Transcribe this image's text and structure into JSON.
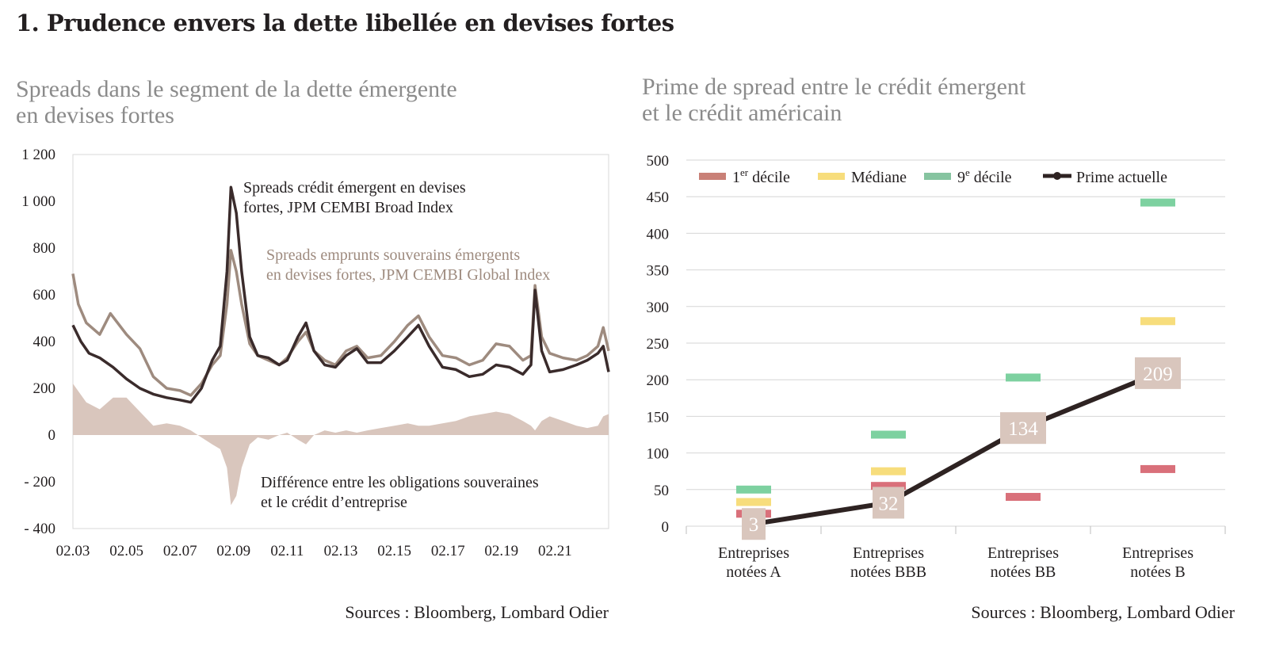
{
  "page": {
    "title": "1. Prudence envers la dette libellée en devises fortes"
  },
  "chart_data": [
    {
      "type": "line",
      "title": "Spreads dans le segment de la dette émergente en devises fortes",
      "title_lines": [
        "Spreads dans le segment de la dette émergente",
        "en devises fortes"
      ],
      "source": "Sources : Bloomberg, Lombard Odier",
      "ylim": [
        -400,
        1200
      ],
      "y_ticks": [
        1200,
        1000,
        800,
        600,
        400,
        200,
        0,
        -200,
        -400
      ],
      "y_tick_labels": [
        "1 200",
        "1 000",
        "800",
        "600",
        "400",
        "200",
        "0",
        "- 200",
        "- 400"
      ],
      "x_tick_labels": [
        "02.03",
        "02.05",
        "02.07",
        "02.09",
        "02.11",
        "02.13",
        "02.15",
        "02.17",
        "02.19",
        "02.21"
      ],
      "x_range": [
        2003.0,
        2023.0
      ],
      "x_tick_values": [
        2003.0,
        2005.0,
        2007.0,
        2009.0,
        2011.0,
        2013.0,
        2015.0,
        2017.0,
        2019.0,
        2021.0
      ],
      "grid": false,
      "series": [
        {
          "name": "Spreads crédit émergent en devises fortes, JPM CEMBI Broad Index",
          "label_lines": [
            "Spreads crédit émergent en devises",
            "fortes, JPM CEMBI Broad Index"
          ],
          "color": "#3a2b2b",
          "style": "line",
          "x": [
            2003.0,
            2003.3,
            2003.6,
            2004.0,
            2004.5,
            2005.0,
            2005.5,
            2006.0,
            2006.5,
            2007.0,
            2007.4,
            2007.8,
            2008.2,
            2008.5,
            2008.75,
            2008.9,
            2009.1,
            2009.3,
            2009.6,
            2009.9,
            2010.3,
            2010.7,
            2011.0,
            2011.4,
            2011.7,
            2012.0,
            2012.4,
            2012.8,
            2013.2,
            2013.6,
            2014.0,
            2014.5,
            2015.0,
            2015.5,
            2015.9,
            2016.3,
            2016.8,
            2017.3,
            2017.8,
            2018.3,
            2018.8,
            2019.3,
            2019.8,
            2020.1,
            2020.25,
            2020.5,
            2020.8,
            2021.3,
            2021.8,
            2022.2,
            2022.6,
            2022.8,
            2023.0
          ],
          "values": [
            470,
            400,
            350,
            330,
            290,
            240,
            200,
            175,
            160,
            150,
            140,
            200,
            320,
            380,
            700,
            1060,
            950,
            700,
            420,
            340,
            330,
            300,
            320,
            420,
            480,
            360,
            300,
            290,
            340,
            370,
            310,
            310,
            360,
            420,
            470,
            380,
            290,
            280,
            250,
            260,
            300,
            290,
            260,
            300,
            620,
            360,
            270,
            280,
            300,
            320,
            350,
            380,
            270
          ]
        },
        {
          "name": "Spreads emprunts souverains émergents en devises fortes, JPM CEMBI Global Index",
          "label_lines": [
            "Spreads emprunts souverains émergents",
            "en devises fortes, JPM CEMBI Global Index"
          ],
          "color": "#9e8b7f",
          "style": "line",
          "x": [
            2003.0,
            2003.2,
            2003.5,
            2004.0,
            2004.4,
            2005.0,
            2005.5,
            2006.0,
            2006.5,
            2007.0,
            2007.4,
            2007.8,
            2008.2,
            2008.5,
            2008.75,
            2008.9,
            2009.1,
            2009.3,
            2009.6,
            2009.9,
            2010.3,
            2010.7,
            2011.0,
            2011.4,
            2011.7,
            2012.0,
            2012.4,
            2012.8,
            2013.2,
            2013.6,
            2014.0,
            2014.5,
            2015.0,
            2015.5,
            2015.9,
            2016.3,
            2016.8,
            2017.3,
            2017.8,
            2018.3,
            2018.8,
            2019.3,
            2019.8,
            2020.1,
            2020.25,
            2020.5,
            2020.8,
            2021.3,
            2021.8,
            2022.2,
            2022.6,
            2022.8,
            2023.0
          ],
          "values": [
            690,
            560,
            480,
            430,
            520,
            430,
            370,
            250,
            200,
            190,
            170,
            220,
            300,
            340,
            560,
            790,
            700,
            560,
            390,
            340,
            320,
            300,
            330,
            400,
            440,
            360,
            320,
            300,
            360,
            380,
            330,
            340,
            400,
            470,
            510,
            420,
            340,
            330,
            300,
            320,
            390,
            380,
            320,
            340,
            640,
            420,
            350,
            330,
            320,
            340,
            380,
            460,
            360
          ]
        },
        {
          "name": "Différence entre les obligations souveraines et le crédit d’entreprise",
          "label_lines": [
            "Différence entre les obligations souveraines",
            "et le crédit d’entreprise"
          ],
          "color": "#d9c6bd",
          "style": "area",
          "x": [
            2003.0,
            2003.5,
            2004.0,
            2004.5,
            2005.0,
            2005.5,
            2006.0,
            2006.5,
            2007.0,
            2007.4,
            2007.8,
            2008.2,
            2008.5,
            2008.75,
            2008.9,
            2009.1,
            2009.3,
            2009.6,
            2009.9,
            2010.3,
            2010.7,
            2011.0,
            2011.4,
            2011.7,
            2012.0,
            2012.4,
            2012.8,
            2013.2,
            2013.6,
            2014.0,
            2014.5,
            2015.0,
            2015.5,
            2015.9,
            2016.3,
            2016.8,
            2017.3,
            2017.8,
            2018.3,
            2018.8,
            2019.3,
            2019.8,
            2020.1,
            2020.25,
            2020.5,
            2020.8,
            2021.3,
            2021.8,
            2022.2,
            2022.6,
            2022.8,
            2023.0
          ],
          "values": [
            220,
            140,
            110,
            160,
            160,
            100,
            40,
            50,
            40,
            20,
            -10,
            -40,
            -60,
            -140,
            -300,
            -260,
            -140,
            -40,
            -10,
            -20,
            0,
            10,
            -20,
            -40,
            0,
            20,
            10,
            20,
            10,
            20,
            30,
            40,
            50,
            40,
            40,
            50,
            60,
            80,
            90,
            100,
            90,
            60,
            40,
            20,
            60,
            80,
            60,
            40,
            30,
            40,
            80,
            90
          ]
        }
      ]
    },
    {
      "type": "line",
      "title": "Prime de spread entre le crédit émergent et le crédit américain",
      "title_lines": [
        "Prime de spread entre le crédit émergent",
        "et le crédit américain"
      ],
      "source": "Sources : Bloomberg, Lombard Odier",
      "ylim": [
        0,
        500
      ],
      "y_ticks": [
        0,
        50,
        100,
        150,
        200,
        250,
        300,
        350,
        400,
        450,
        500
      ],
      "grid": true,
      "categories": [
        "Entreprises notées A",
        "Entreprises notées BBB",
        "Entreprises notées BB",
        "Entreprises notées B"
      ],
      "category_lines": [
        [
          "Entreprises",
          "notées A"
        ],
        [
          "Entreprises",
          "notées BBB"
        ],
        [
          "Entreprises",
          "notées BB"
        ],
        [
          "Entreprises",
          "notées B"
        ]
      ],
      "legend": [
        {
          "label": "1",
          "sup": "er",
          "rest": " décile",
          "color": "#c98077",
          "kind": "bar"
        },
        {
          "label": "Médiane",
          "sup": "",
          "rest": "",
          "color": "#f7dd7c",
          "kind": "bar"
        },
        {
          "label": "9",
          "sup": "e",
          "rest": " décile",
          "color": "#86c4a0",
          "kind": "bar"
        },
        {
          "label": "Prime actuelle",
          "sup": "",
          "rest": "",
          "color": "#2e2322",
          "kind": "line"
        }
      ],
      "series": [
        {
          "name": "1er décile",
          "color": "#d9707a",
          "style": "marker",
          "values": [
            17,
            55,
            40,
            78
          ]
        },
        {
          "name": "Médiane",
          "color": "#f7dd7c",
          "style": "marker",
          "values": [
            33,
            75,
            120,
            280
          ]
        },
        {
          "name": "9e décile",
          "color": "#7dd1a0",
          "style": "marker",
          "values": [
            50,
            125,
            203,
            442
          ]
        },
        {
          "name": "Prime actuelle",
          "color": "#2e2322",
          "style": "line",
          "values": [
            3,
            32,
            134,
            209
          ],
          "data_labels": [
            "3",
            "32",
            "134",
            "209"
          ],
          "label_box_color": "#d9c6bd"
        }
      ]
    }
  ]
}
